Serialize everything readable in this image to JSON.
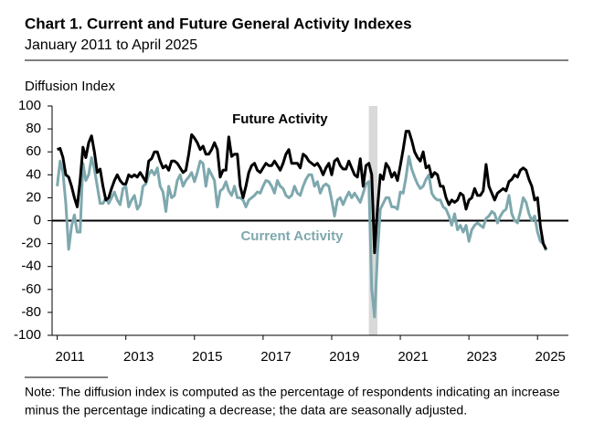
{
  "chart_data": {
    "type": "line",
    "title": "Chart 1. Current and Future General Activity Indexes",
    "subtitle": "January 2011 to April 2025",
    "y_label": "Diffusion Index",
    "note": [
      "Note: The diffusion index is computed as the percentage of respondents indicating an increase",
      "minus the percentage indicating a decrease; the data are seasonally adjusted."
    ],
    "xlim": [
      2010.85,
      2025.9
    ],
    "xticks": [
      2011,
      2013,
      2015,
      2017,
      2019,
      2021,
      2023,
      2025
    ],
    "ylim": [
      -100,
      100
    ],
    "yticks": [
      -100,
      -80,
      -60,
      -40,
      -20,
      0,
      20,
      40,
      60,
      80,
      100
    ],
    "shade": {
      "x": [
        2020.083,
        2020.333
      ],
      "color": "#d9d9d9"
    },
    "x": [
      2011,
      2011.083,
      2011.167,
      2011.25,
      2011.333,
      2011.417,
      2011.5,
      2011.583,
      2011.667,
      2011.75,
      2011.833,
      2011.917,
      2012,
      2012.083,
      2012.167,
      2012.25,
      2012.333,
      2012.417,
      2012.5,
      2012.583,
      2012.667,
      2012.75,
      2012.833,
      2012.917,
      2013,
      2013.083,
      2013.167,
      2013.25,
      2013.333,
      2013.417,
      2013.5,
      2013.583,
      2013.667,
      2013.75,
      2013.833,
      2013.917,
      2014,
      2014.083,
      2014.167,
      2014.25,
      2014.333,
      2014.417,
      2014.5,
      2014.583,
      2014.667,
      2014.75,
      2014.833,
      2014.917,
      2015,
      2015.083,
      2015.167,
      2015.25,
      2015.333,
      2015.417,
      2015.5,
      2015.583,
      2015.667,
      2015.75,
      2015.833,
      2015.917,
      2016,
      2016.083,
      2016.167,
      2016.25,
      2016.333,
      2016.417,
      2016.5,
      2016.583,
      2016.667,
      2016.75,
      2016.833,
      2016.917,
      2017,
      2017.083,
      2017.167,
      2017.25,
      2017.333,
      2017.417,
      2017.5,
      2017.583,
      2017.667,
      2017.75,
      2017.833,
      2017.917,
      2018,
      2018.083,
      2018.167,
      2018.25,
      2018.333,
      2018.417,
      2018.5,
      2018.583,
      2018.667,
      2018.75,
      2018.833,
      2018.917,
      2019,
      2019.083,
      2019.167,
      2019.25,
      2019.333,
      2019.417,
      2019.5,
      2019.583,
      2019.667,
      2019.75,
      2019.833,
      2019.917,
      2020,
      2020.083,
      2020.167,
      2020.25,
      2020.333,
      2020.417,
      2020.5,
      2020.583,
      2020.667,
      2020.75,
      2020.833,
      2020.917,
      2021,
      2021.083,
      2021.167,
      2021.25,
      2021.333,
      2021.417,
      2021.5,
      2021.583,
      2021.667,
      2021.75,
      2021.833,
      2021.917,
      2022,
      2022.083,
      2022.167,
      2022.25,
      2022.333,
      2022.417,
      2022.5,
      2022.583,
      2022.667,
      2022.75,
      2022.833,
      2022.917,
      2023,
      2023.083,
      2023.167,
      2023.25,
      2023.333,
      2023.417,
      2023.5,
      2023.583,
      2023.667,
      2023.75,
      2023.833,
      2023.917,
      2024,
      2024.083,
      2024.167,
      2024.25,
      2024.333,
      2024.417,
      2024.5,
      2024.583,
      2024.667,
      2024.75,
      2024.833,
      2024.917,
      2025,
      2025.083,
      2025.167,
      2025.25
    ],
    "series": [
      {
        "name": "Future Activity",
        "color": "#000000",
        "label_at": [
          2016.1,
          88
        ],
        "values": [
          62,
          63,
          55,
          40,
          38,
          30,
          20,
          12,
          35,
          64,
          55,
          68,
          74,
          60,
          42,
          45,
          30,
          18,
          20,
          28,
          35,
          40,
          35,
          32,
          32,
          40,
          38,
          40,
          38,
          42,
          38,
          34,
          52,
          54,
          60,
          60,
          52,
          46,
          48,
          44,
          52,
          52,
          50,
          46,
          42,
          44,
          58,
          75,
          72,
          68,
          62,
          65,
          58,
          58,
          62,
          68,
          62,
          38,
          44,
          44,
          73,
          56,
          58,
          58,
          30,
          20,
          30,
          42,
          48,
          50,
          44,
          42,
          46,
          50,
          48,
          48,
          52,
          48,
          44,
          50,
          58,
          62,
          50,
          50,
          50,
          46,
          58,
          56,
          52,
          50,
          48,
          50,
          46,
          40,
          46,
          50,
          40,
          52,
          54,
          48,
          45,
          45,
          52,
          46,
          40,
          38,
          54,
          30,
          48,
          50,
          40,
          -28,
          10,
          40,
          36,
          50,
          46,
          38,
          42,
          35,
          48,
          62,
          78,
          78,
          70,
          60,
          55,
          52,
          60,
          46,
          48,
          38,
          42,
          40,
          30,
          30,
          20,
          14,
          18,
          16,
          18,
          24,
          22,
          10,
          18,
          20,
          28,
          22,
          22,
          26,
          49,
          30,
          24,
          18,
          24,
          26,
          28,
          26,
          34,
          36,
          40,
          38,
          44,
          46,
          44,
          36,
          30,
          18,
          20,
          -5,
          -20,
          -25
        ]
      },
      {
        "name": "Current Activity",
        "color": "#7ea8ae",
        "label_at": [
          2016.35,
          -14
        ],
        "values": [
          30,
          52,
          42,
          15,
          -25,
          -5,
          5,
          -10,
          -10,
          50,
          35,
          40,
          55,
          45,
          30,
          15,
          15,
          20,
          15,
          20,
          25,
          18,
          14,
          28,
          30,
          12,
          18,
          22,
          10,
          14,
          30,
          32,
          40,
          44,
          40,
          46,
          30,
          25,
          8,
          30,
          20,
          22,
          35,
          40,
          30,
          35,
          38,
          42,
          34,
          42,
          52,
          50,
          30,
          45,
          40,
          35,
          12,
          26,
          28,
          34,
          26,
          22,
          30,
          20,
          20,
          18,
          12,
          18,
          20,
          22,
          25,
          24,
          30,
          35,
          34,
          30,
          24,
          35,
          30,
          28,
          22,
          20,
          22,
          30,
          24,
          22,
          30,
          36,
          40,
          40,
          30,
          34,
          24,
          30,
          32,
          30,
          18,
          4,
          18,
          20,
          14,
          20,
          25,
          20,
          24,
          20,
          16,
          24,
          32,
          34,
          -60,
          -84,
          -30,
          10,
          15,
          20,
          20,
          12,
          12,
          10,
          25,
          24,
          38,
          56,
          45,
          38,
          32,
          28,
          30,
          36,
          40,
          24,
          20,
          18,
          18,
          12,
          10,
          4,
          -4,
          6,
          -8,
          -4,
          -10,
          -4,
          -18,
          -8,
          -4,
          -2,
          -4,
          -6,
          2,
          4,
          8,
          6,
          -2,
          4,
          8,
          10,
          22,
          6,
          0,
          -2,
          8,
          20,
          16,
          6,
          0,
          4,
          -10,
          -18,
          -20,
          -26
        ]
      }
    ]
  }
}
